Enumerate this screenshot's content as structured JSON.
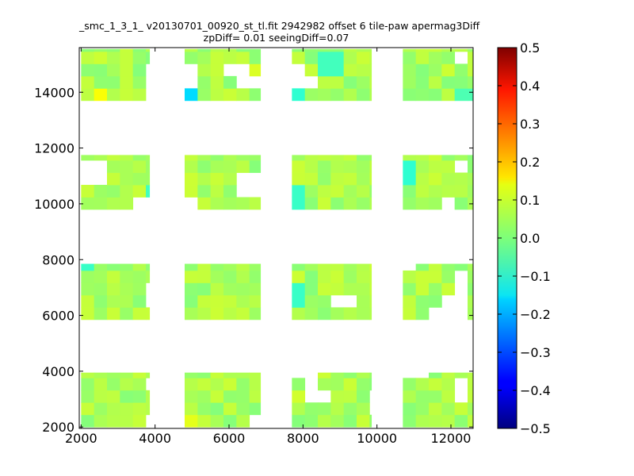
{
  "chart_data": {
    "type": "heatmap",
    "title": "_smc_1_3_1_ v20130701_00920_st_tl.fit 2942982 offset 6 tile-paw apermag3Diff",
    "subtitle": "zpDiff= 0.01 seeingDiff=0.07",
    "xlabel": "",
    "ylabel": "",
    "xlim": [
      1950,
      12600
    ],
    "ylim": [
      1950,
      15600
    ],
    "x_ticks": [
      "2000",
      "4000",
      "6000",
      "8000",
      "10000",
      "12000"
    ],
    "y_ticks": [
      "2000",
      "4000",
      "6000",
      "8000",
      "10000",
      "12000",
      "14000"
    ],
    "colorbar": {
      "colormap": "jet",
      "range": [
        -0.5,
        0.5
      ],
      "ticks": [
        "0.5",
        "0.4",
        "0.3",
        "0.2",
        "0.1",
        "0.0",
        "−0.1",
        "−0.2",
        "−0.3",
        "−0.4",
        "−0.5"
      ]
    },
    "grid": false,
    "cell_size": [
      350,
      440
    ],
    "tile_blocks": {
      "x_ranges": [
        [
          2000,
          3850
        ],
        [
          4800,
          6850
        ],
        [
          7700,
          9850
        ],
        [
          10700,
          12600
        ]
      ],
      "y_ranges": [
        [
          2000,
          3950
        ],
        [
          5850,
          7850
        ],
        [
          9800,
          11750
        ],
        [
          13700,
          15550
        ]
      ],
      "typical_value": 0.04
    },
    "highlights": [
      {
        "x": 4900,
        "y": 14100,
        "value": -0.16
      },
      {
        "x": 2450,
        "y": 13800,
        "value": 0.12
      },
      {
        "x": 4900,
        "y": 2200,
        "value": 0.1
      },
      {
        "x": 6650,
        "y": 14900,
        "value": 0.09
      },
      {
        "x": 6750,
        "y": 10600,
        "value": 0.09
      },
      {
        "x": 7850,
        "y": 14100,
        "value": -0.08
      },
      {
        "x": 7850,
        "y": 10200,
        "value": -0.07
      },
      {
        "x": 7850,
        "y": 6700,
        "value": -0.07
      },
      {
        "x": 2050,
        "y": 7800,
        "value": -0.07
      },
      {
        "x": 10850,
        "y": 11100,
        "value": -0.08
      },
      {
        "x": 12450,
        "y": 13800,
        "value": -0.05
      },
      {
        "x": 4150,
        "y": 10200,
        "value": -0.06
      },
      {
        "x": 8750,
        "y": 15100,
        "value": -0.06
      },
      {
        "x": 7850,
        "y": 3100,
        "value": 0.08
      },
      {
        "x": 7850,
        "y": 3850,
        "value": 0.07
      },
      {
        "x": 2050,
        "y": 10600,
        "value": 0.07
      },
      {
        "x": 8750,
        "y": 14400,
        "value": 0.06
      }
    ],
    "gaps": [
      {
        "x": 6500,
        "y": 10600
      },
      {
        "x": 6500,
        "y": 14400
      },
      {
        "x": 6150,
        "y": 14800
      },
      {
        "x": 7150,
        "y": 14400
      },
      {
        "x": 8050,
        "y": 14400
      },
      {
        "x": 7850,
        "y": 14900
      },
      {
        "x": 4100,
        "y": 14200
      },
      {
        "x": 4100,
        "y": 14700
      },
      {
        "x": 4800,
        "y": 14600
      },
      {
        "x": 2400,
        "y": 11200
      },
      {
        "x": 3800,
        "y": 9900
      },
      {
        "x": 4800,
        "y": 9900
      },
      {
        "x": 4450,
        "y": 7000
      },
      {
        "x": 4050,
        "y": 6800
      },
      {
        "x": 9100,
        "y": 6600
      },
      {
        "x": 8300,
        "y": 3400
      },
      {
        "x": 8050,
        "y": 3900
      },
      {
        "x": 8600,
        "y": 3200
      },
      {
        "x": 11600,
        "y": 5900
      },
      {
        "x": 12050,
        "y": 6300
      },
      {
        "x": 11900,
        "y": 10100
      },
      {
        "x": 12350,
        "y": 11300
      },
      {
        "x": 12250,
        "y": 7200
      },
      {
        "x": 6850,
        "y": 2000
      },
      {
        "x": 4150,
        "y": 3500
      },
      {
        "x": 9900,
        "y": 2800
      },
      {
        "x": 3850,
        "y": 2200
      },
      {
        "x": 10700,
        "y": 7900
      },
      {
        "x": 11000,
        "y": 3950
      },
      {
        "x": 12300,
        "y": 3400
      },
      {
        "x": 12300,
        "y": 15300
      }
    ]
  }
}
